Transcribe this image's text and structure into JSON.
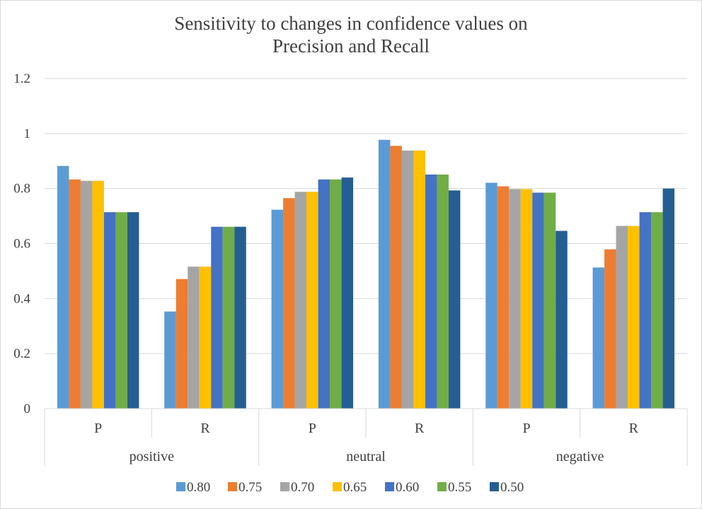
{
  "chart_data": {
    "type": "bar",
    "title": "Sensitivity to changes in confidence values on",
    "subtitle": "Precision and Recall",
    "xlabel": "",
    "ylabel": "",
    "ylim": [
      0,
      1.2
    ],
    "yticks": [
      "0",
      "0.2",
      "0.4",
      "0.6",
      "0.8",
      "1",
      "1.2"
    ],
    "grid": true,
    "legend_position": "bottom",
    "groups": [
      {
        "label": "positive",
        "categories": [
          "P",
          "R"
        ]
      },
      {
        "label": "neutral",
        "categories": [
          "P",
          "R"
        ]
      },
      {
        "label": "negative",
        "categories": [
          "P",
          "R"
        ]
      }
    ],
    "categories": [
      "positive P",
      "positive R",
      "neutral P",
      "neutral R",
      "negative P",
      "negative R"
    ],
    "series": [
      {
        "name": "0.80",
        "color": "#5b9bd5",
        "values": [
          0.882,
          0.353,
          0.723,
          0.977,
          0.821,
          0.513
        ]
      },
      {
        "name": "0.75",
        "color": "#ed7d31",
        "values": [
          0.833,
          0.471,
          0.765,
          0.955,
          0.808,
          0.579
        ]
      },
      {
        "name": "0.70",
        "color": "#a5a5a5",
        "values": [
          0.828,
          0.516,
          0.788,
          0.938,
          0.798,
          0.664
        ]
      },
      {
        "name": "0.65",
        "color": "#ffc000",
        "values": [
          0.828,
          0.516,
          0.788,
          0.938,
          0.798,
          0.664
        ]
      },
      {
        "name": "0.60",
        "color": "#4472c4",
        "values": [
          0.714,
          0.661,
          0.833,
          0.851,
          0.785,
          0.714
        ]
      },
      {
        "name": "0.55",
        "color": "#70ad47",
        "values": [
          0.714,
          0.661,
          0.833,
          0.851,
          0.785,
          0.714
        ]
      },
      {
        "name": "0.50",
        "color": "#255e91",
        "values": [
          0.714,
          0.661,
          0.84,
          0.793,
          0.646,
          0.8
        ]
      }
    ]
  }
}
